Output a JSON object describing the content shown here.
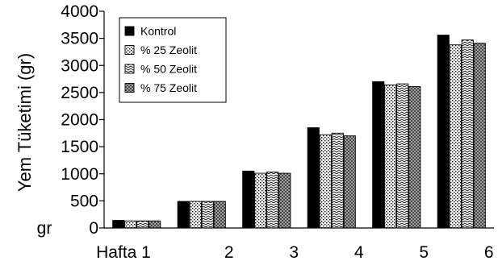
{
  "chart_data": {
    "type": "bar",
    "categories": [
      "Hafta 1",
      "2",
      "3",
      "4",
      "5",
      "6"
    ],
    "series": [
      {
        "name": "Kontrol",
        "values": [
          140,
          490,
          1050,
          1850,
          2700,
          3560
        ],
        "pattern": "solid"
      },
      {
        "name": "% 25 Zeolit",
        "values": [
          130,
          490,
          1010,
          1720,
          2640,
          3380
        ],
        "pattern": "dots"
      },
      {
        "name": "% 50 Zeolit",
        "values": [
          130,
          490,
          1030,
          1750,
          2660,
          3470
        ],
        "pattern": "waves"
      },
      {
        "name": "% 75 Zeolit",
        "values": [
          130,
          490,
          1010,
          1700,
          2610,
          3410
        ],
        "pattern": "crosshatch"
      }
    ],
    "yticks": [
      0,
      500,
      1000,
      1500,
      2000,
      2500,
      3000,
      3500,
      4000
    ],
    "ylim": [
      0,
      4000
    ],
    "ylabel": "Yem Tüketimi (gr)",
    "ytick_zero_prefix": "gr",
    "xlabel": "",
    "grid": false,
    "legend_position": "top-left"
  }
}
